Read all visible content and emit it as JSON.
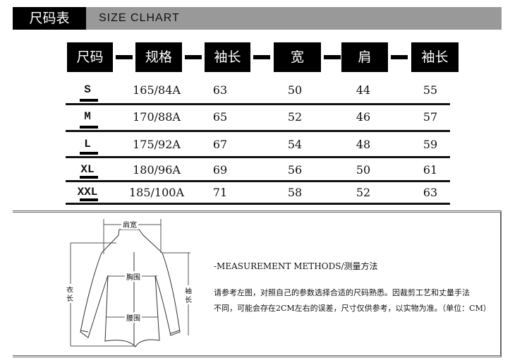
{
  "header": {
    "title_cn": "尺码表",
    "title_en": "SIZE CLHART"
  },
  "columns": [
    "尺码",
    "规格",
    "袖长",
    "宽",
    "肩",
    "袖长"
  ],
  "rows": [
    [
      "S",
      "165/84A",
      "63",
      "50",
      "44",
      "55"
    ],
    [
      "M",
      "170/88A",
      "65",
      "52",
      "46",
      "57"
    ],
    [
      "L",
      "175/92A",
      "67",
      "54",
      "48",
      "59"
    ],
    [
      "XL",
      "180/96A",
      "69",
      "56",
      "50",
      "61"
    ],
    [
      "XXL",
      "185/100A",
      "71",
      "58",
      "52",
      "63"
    ]
  ],
  "diagram": {
    "shoulder": "肩宽",
    "chest": "胸围",
    "waist": "腰围",
    "length_1": "衣",
    "length_2": "长",
    "sleeve_1": "袖",
    "sleeve_2": "长"
  },
  "measurement": {
    "title": "-MEASUREMENT METHODS/测量方法",
    "line1": "请参考左图，对照自己的参数选择合适的尺码熟悉。因裁剪工艺和丈量手法",
    "line2": "不同，可能会存在2CM左右的误差，尺寸仅供参考，以实物为准。（单位：CM）"
  }
}
